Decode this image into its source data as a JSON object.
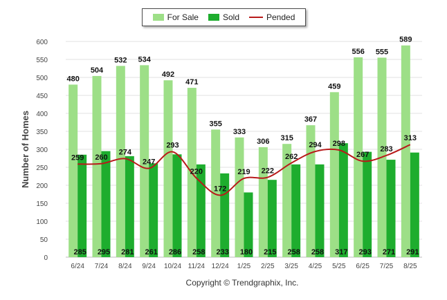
{
  "legend": {
    "for_sale": "For Sale",
    "sold": "Sold",
    "pended": "Pended"
  },
  "colors": {
    "for_sale": "#9ddf87",
    "sold": "#1ead2e",
    "pended": "#b81a1a"
  },
  "credit": "Copyright © Trendgraphix, Inc.",
  "chart_data": {
    "type": "bar",
    "ylabel": "Number of Homes",
    "ylim": [
      0,
      600
    ],
    "yticks": [
      0,
      50,
      100,
      150,
      200,
      250,
      300,
      350,
      400,
      450,
      500,
      550,
      600
    ],
    "grid": true,
    "legend_position": "top-center",
    "categories": [
      "6/24",
      "7/24",
      "8/24",
      "9/24",
      "10/24",
      "11/24",
      "12/24",
      "1/25",
      "2/25",
      "3/25",
      "4/25",
      "5/25",
      "6/25",
      "7/25",
      "8/25"
    ],
    "series": [
      {
        "name": "For Sale",
        "kind": "bar",
        "values": [
          480,
          504,
          532,
          534,
          492,
          471,
          355,
          333,
          306,
          315,
          367,
          459,
          556,
          555,
          589
        ]
      },
      {
        "name": "Sold",
        "kind": "bar",
        "values": [
          285,
          295,
          281,
          261,
          286,
          258,
          233,
          180,
          215,
          258,
          258,
          317,
          293,
          271,
          291
        ]
      },
      {
        "name": "Pended",
        "kind": "line",
        "values": [
          259,
          260,
          274,
          247,
          293,
          220,
          172,
          219,
          222,
          262,
          294,
          298,
          267,
          283,
          313
        ]
      }
    ]
  }
}
